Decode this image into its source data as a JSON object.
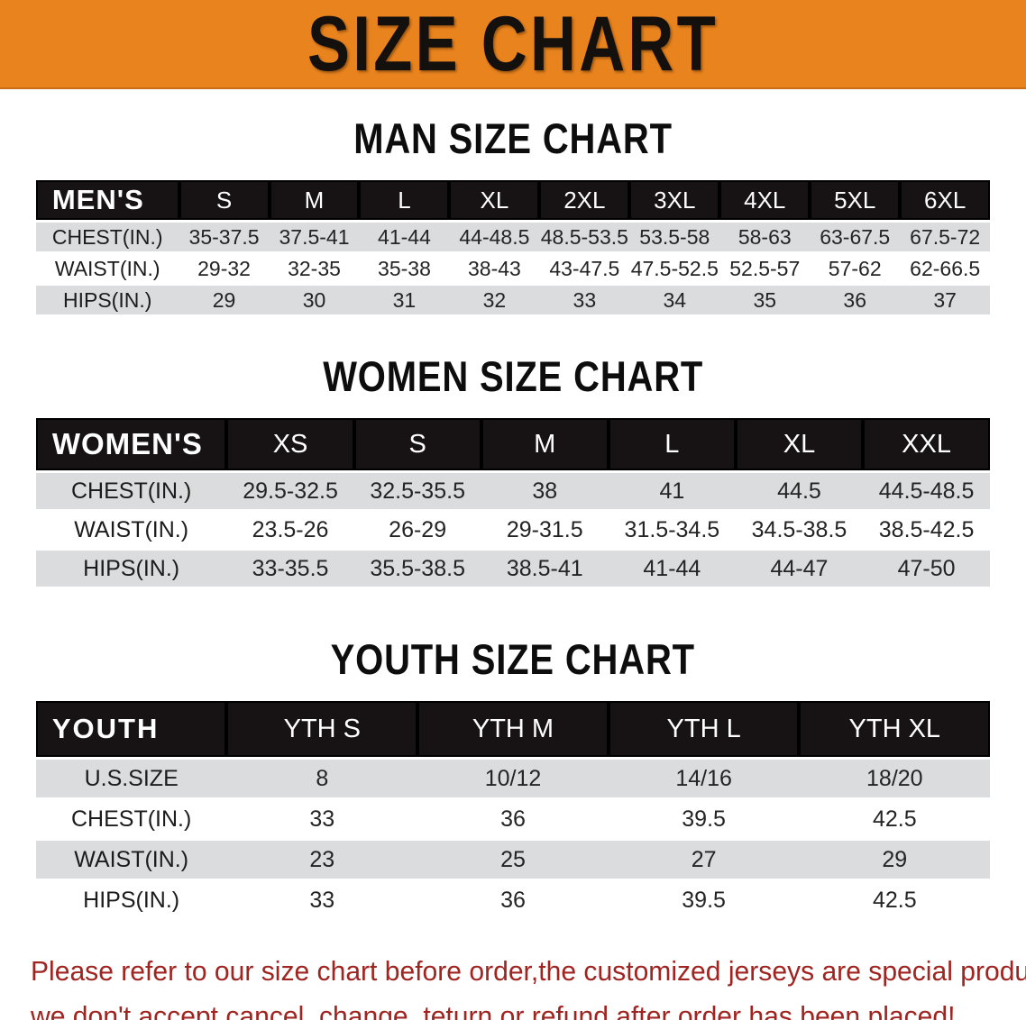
{
  "banner": {
    "title": "SIZE CHART"
  },
  "sections": [
    {
      "title": "MAN SIZE CHART",
      "header_label": "MEN'S",
      "columns": [
        "S",
        "M",
        "L",
        "XL",
        "2XL",
        "3XL",
        "4XL",
        "5XL",
        "6XL"
      ],
      "rows": [
        {
          "label": "CHEST(IN.)",
          "values": [
            "35-37.5",
            "37.5-41",
            "41-44",
            "44-48.5",
            "48.5-53.5",
            "53.5-58",
            "58-63",
            "63-67.5",
            "67.5-72"
          ]
        },
        {
          "label": "WAIST(IN.)",
          "values": [
            "29-32",
            "32-35",
            "35-38",
            "38-43",
            "43-47.5",
            "47.5-52.5",
            "52.5-57",
            "57-62",
            "62-66.5"
          ]
        },
        {
          "label": "HIPS(IN.)",
          "values": [
            "29",
            "30",
            "31",
            "32",
            "33",
            "34",
            "35",
            "36",
            "37"
          ]
        }
      ]
    },
    {
      "title": "WOMEN SIZE CHART",
      "header_label": "WOMEN'S",
      "columns": [
        "XS",
        "S",
        "M",
        "L",
        "XL",
        "XXL"
      ],
      "rows": [
        {
          "label": "CHEST(IN.)",
          "values": [
            "29.5-32.5",
            "32.5-35.5",
            "38",
            "41",
            "44.5",
            "44.5-48.5"
          ]
        },
        {
          "label": "WAIST(IN.)",
          "values": [
            "23.5-26",
            "26-29",
            "29-31.5",
            "31.5-34.5",
            "34.5-38.5",
            "38.5-42.5"
          ]
        },
        {
          "label": "HIPS(IN.)",
          "values": [
            "33-35.5",
            "35.5-38.5",
            "38.5-41",
            "41-44",
            "44-47",
            "47-50"
          ]
        }
      ]
    },
    {
      "title": "YOUTH SIZE CHART",
      "header_label": "YOUTH",
      "columns": [
        "YTH S",
        "YTH M",
        "YTH L",
        "YTH XL"
      ],
      "rows": [
        {
          "label": "U.S.SIZE",
          "values": [
            "8",
            "10/12",
            "14/16",
            "18/20"
          ]
        },
        {
          "label": "CHEST(IN.)",
          "values": [
            "33",
            "36",
            "39.5",
            "42.5"
          ]
        },
        {
          "label": "WAIST(IN.)",
          "values": [
            "23",
            "25",
            "27",
            "29"
          ]
        },
        {
          "label": "HIPS(IN.)",
          "values": [
            "33",
            "36",
            "39.5",
            "42.5"
          ]
        }
      ]
    }
  ],
  "disclaimer": {
    "lines": [
      "Please refer to our size chart before order,the customized jerseys are special products,",
      "we don't accept cancel, change, teturn or refund after order has been placed!"
    ]
  },
  "colors": {
    "banner_bg": "#e8831e",
    "header_bar": "#171213",
    "row_alt": "#dbdcdd",
    "row_base": "#ffffff",
    "disclaimer_text": "#a02420"
  }
}
